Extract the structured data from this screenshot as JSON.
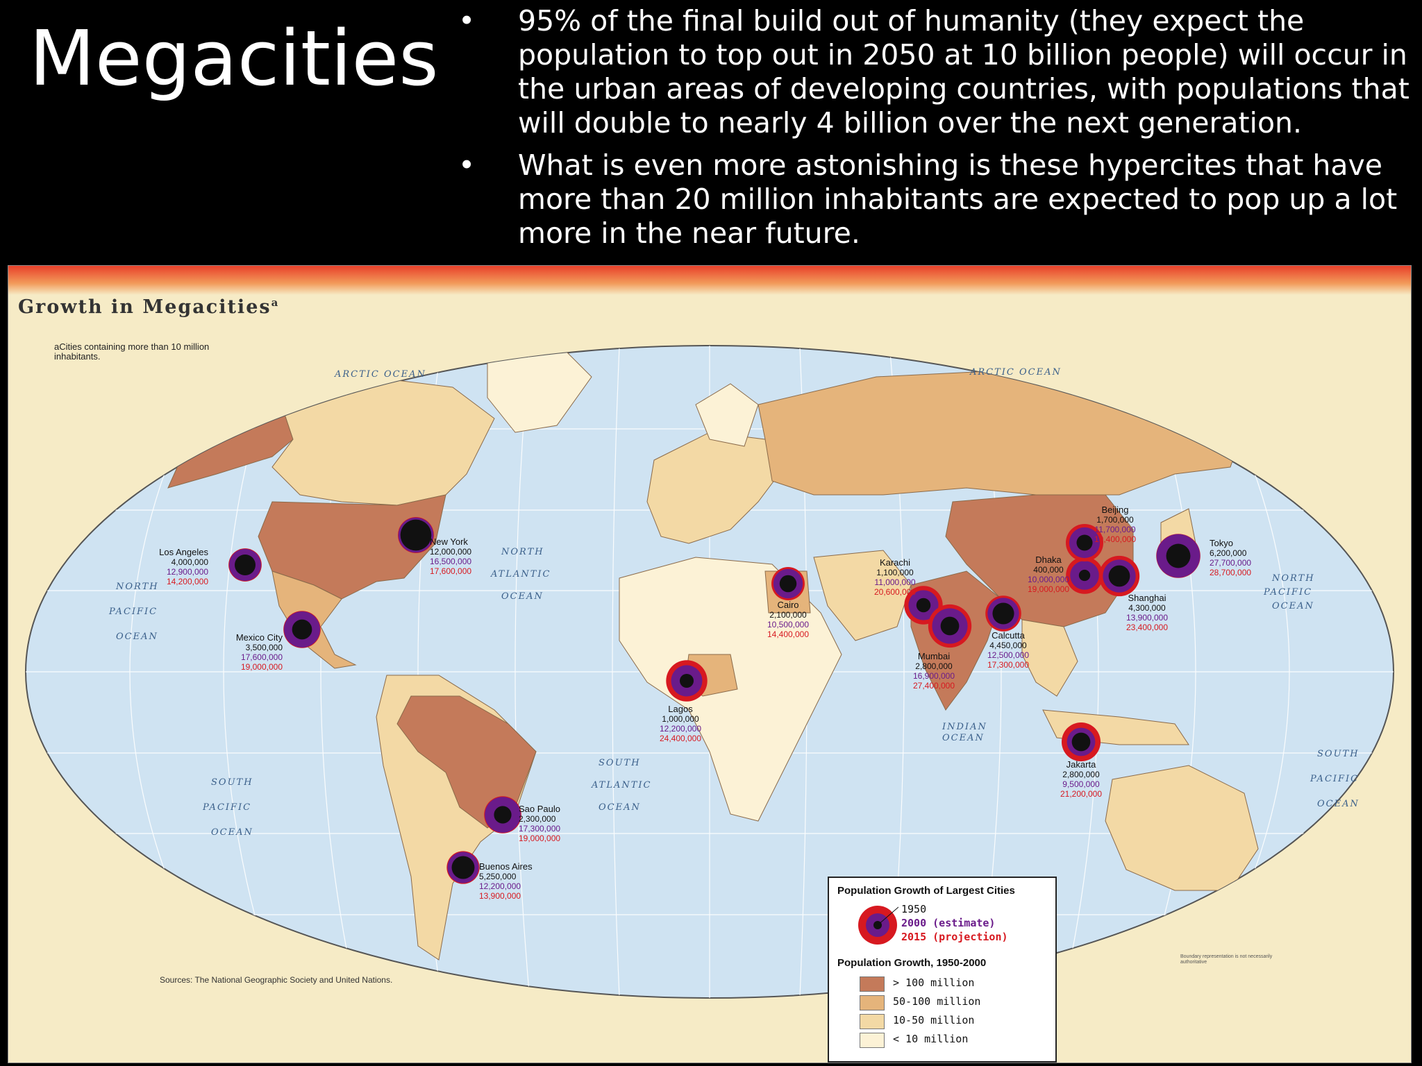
{
  "slide": {
    "title": "Megacities",
    "bullets": [
      "95% of the final build out of humanity (they expect the population to top out in 2050 at 10 billion people) will occur in the urban areas of developing countries, with populations that will double to nearly 4 billion over the next generation.",
      "What is even more astonishing is these hypercites that have more than 20 million inhabitants are expected to pop up a lot more in the near future."
    ],
    "bullet_char": "•"
  },
  "map": {
    "title": "Growth in Megacities",
    "title_sup": "a",
    "footnote": "aCities containing more than 10 million inhabitants.",
    "sources": "Sources: The National Geographic Society and United Nations.",
    "boundary_note": "Boundary representation is not necessarily authoritative",
    "oceans": [
      "ARCTIC OCEAN",
      "ARCTIC OCEAN",
      "NORTH",
      "PACIFIC",
      "OCEAN",
      "NORTH",
      "ATLANTIC",
      "OCEAN",
      "NORTH",
      "PACIFIC",
      "OCEAN",
      "SOUTH",
      "PACIFIC",
      "OCEAN",
      "SOUTH",
      "ATLANTIC",
      "OCEAN",
      "INDIAN",
      "OCEAN",
      "SOUTH",
      "PACIFIC",
      "OCEAN"
    ],
    "colors": {
      "ocean": "#cfe3f2",
      "gt100": "#c47a5a",
      "c50_100": "#e5b47b",
      "c10_50": "#f3d9a5",
      "lt10": "#fcf2d6",
      "ring1950": "#111111",
      "ring2000": "#6a1b8a",
      "ring2015": "#d71920"
    },
    "cities": [
      {
        "name": "Los Angeles",
        "p1950": "4,000,000",
        "p2000": "12,900,000",
        "p2015": "14,200,000"
      },
      {
        "name": "New York",
        "p1950": "12,000,000",
        "p2000": "16,500,000",
        "p2015": "17,600,000"
      },
      {
        "name": "Mexico City",
        "p1950": "3,500,000",
        "p2000": "17,600,000",
        "p2015": "19,000,000"
      },
      {
        "name": "Sao Paulo",
        "p1950": "2,300,000",
        "p2000": "17,300,000",
        "p2015": "19,000,000"
      },
      {
        "name": "Buenos Aires",
        "p1950": "5,250,000",
        "p2000": "12,200,000",
        "p2015": "13,900,000"
      },
      {
        "name": "Lagos",
        "p1950": "1,000,000",
        "p2000": "12,200,000",
        "p2015": "24,400,000"
      },
      {
        "name": "Cairo",
        "p1950": "2,100,000",
        "p2000": "10,500,000",
        "p2015": "14,400,000"
      },
      {
        "name": "Karachi",
        "p1950": "1,100,000",
        "p2000": "11,000,000",
        "p2015": "20,600,000"
      },
      {
        "name": "Mumbai",
        "p1950": "2,800,000",
        "p2000": "16,900,000",
        "p2015": "27,400,000"
      },
      {
        "name": "Calcutta",
        "p1950": "4,450,000",
        "p2000": "12,500,000",
        "p2015": "17,300,000"
      },
      {
        "name": "Dhaka",
        "p1950": "400,000",
        "p2000": "10,000,000",
        "p2015": "19,000,000"
      },
      {
        "name": "Beijing",
        "p1950": "1,700,000",
        "p2000": "11,700,000",
        "p2015": "19,400,000"
      },
      {
        "name": "Shanghai",
        "p1950": "4,300,000",
        "p2000": "13,900,000",
        "p2015": "23,400,000"
      },
      {
        "name": "Tokyo",
        "p1950": "6,200,000",
        "p2000": "27,700,000",
        "p2015": "28,700,000"
      },
      {
        "name": "Jakarta",
        "p1950": "2,800,000",
        "p2000": "9,500,000",
        "p2015": "21,200,000"
      }
    ],
    "legend": {
      "title1": "Population Growth of Largest Cities",
      "year1950": "1950",
      "year2000": "2000 (estimate)",
      "year2015": "2015 (projection)",
      "title2": "Population Growth, 1950-2000",
      "items": [
        "> 100 million",
        "50-100 million",
        "10-50 million",
        "< 10 million"
      ]
    }
  }
}
